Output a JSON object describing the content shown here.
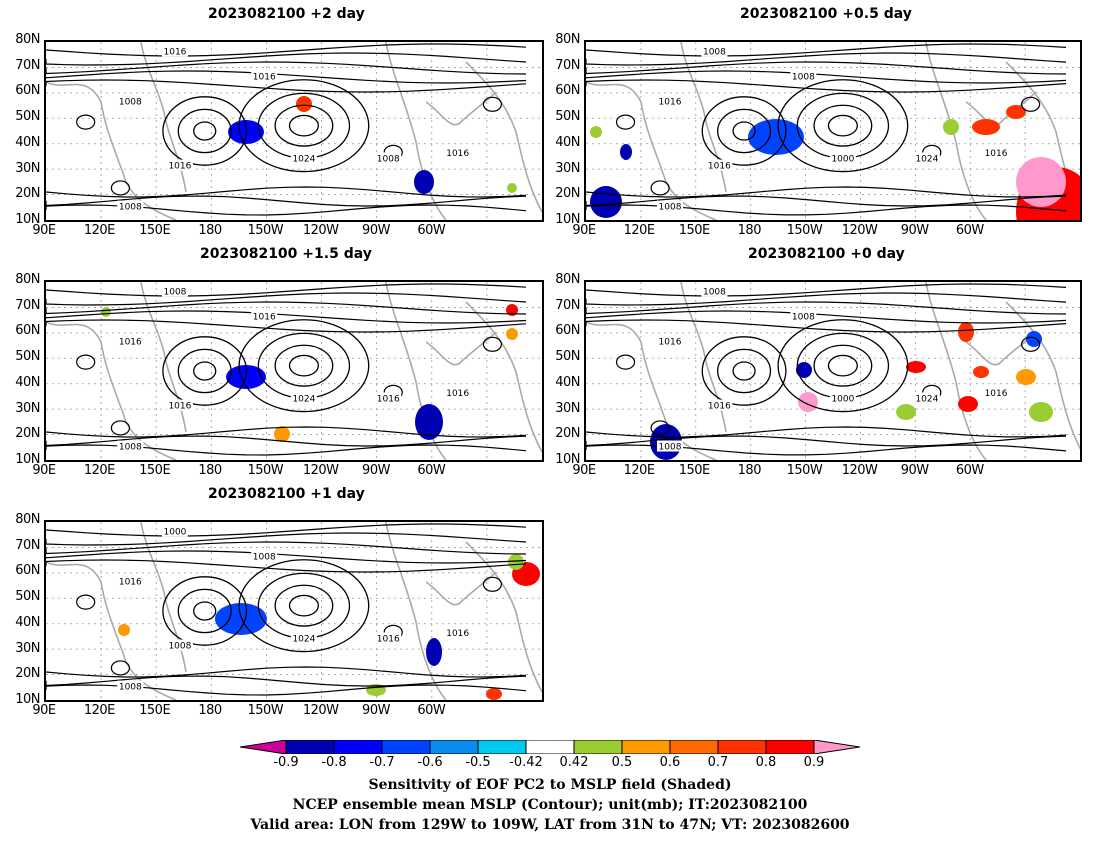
{
  "panels": [
    {
      "title": "2023082100 +2 day",
      "labels": [
        "1016",
        "1016",
        "1008",
        "1016",
        "1024",
        "1008",
        "1016",
        "1008"
      ]
    },
    {
      "title": "2023082100 +0.5 day",
      "labels": [
        "1008",
        "1008",
        "1016",
        "1016",
        "1000",
        "1024",
        "1016",
        "1008"
      ]
    },
    {
      "title": "2023082100 +1.5 day",
      "labels": [
        "1016",
        "1008",
        "1016",
        "1016",
        "1024",
        "1016",
        "1016",
        "1008"
      ]
    },
    {
      "title": "2023082100 +0 day",
      "labels": [
        "1008",
        "1008",
        "1016",
        "1016",
        "1000",
        "1024",
        "1016",
        "1008"
      ]
    },
    {
      "title": "2023082100 +1 day",
      "labels": [
        "1008",
        "1000",
        "1016",
        "1008",
        "1024",
        "1016",
        "1016",
        "1008"
      ]
    }
  ],
  "lat_ticks": [
    "80N",
    "70N",
    "60N",
    "50N",
    "40N",
    "30N",
    "20N",
    "10N"
  ],
  "lon_ticks": [
    "90E",
    "120E",
    "150E",
    "180",
    "150W",
    "120W",
    "90W",
    "60W"
  ],
  "colorbar": {
    "labels": [
      "-0.9",
      "-0.8",
      "-0.7",
      "-0.6",
      "-0.5",
      "-0.42",
      "0.42",
      "0.5",
      "0.6",
      "0.7",
      "0.8",
      "0.9"
    ],
    "colors": [
      "#cc0099",
      "#0000b3",
      "#0000ff",
      "#0044ff",
      "#0a8cf0",
      "#00c8f0",
      "#ffffff",
      "#9acd32",
      "#ff9900",
      "#ff6a00",
      "#ff3300",
      "#ff0000",
      "#ff99cc"
    ]
  },
  "caption": {
    "line1": "Sensitivity of EOF PC2 to MSLP field (Shaded)",
    "line2": "NCEP ensemble mean MSLP (Contour); unit(mb); IT:2023082100",
    "line3": "Valid area: LON from 129W to 109W, LAT from 31N to 47N; VT: 2023082600"
  }
}
